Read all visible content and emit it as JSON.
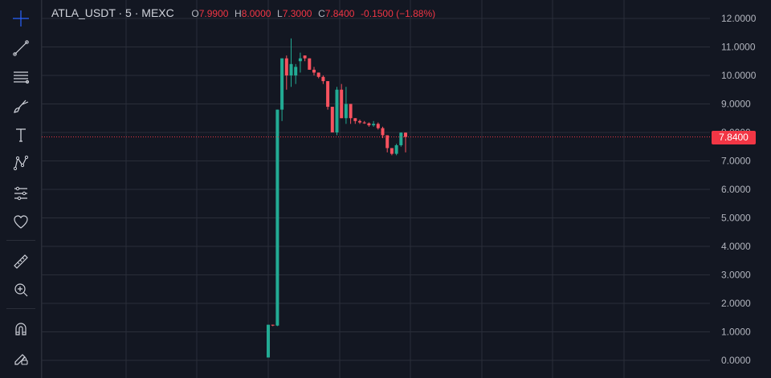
{
  "header": {
    "symbol": "ATLA_USDT · 5 · MEXC",
    "open_label": "O",
    "open_value": "7.9900",
    "high_label": "H",
    "high_value": "8.0000",
    "low_label": "L",
    "low_value": "7.3000",
    "close_label": "C",
    "close_value": "7.8400",
    "change_value": "-0.1500 (−1.88%)"
  },
  "price_tag": "7.8400",
  "colors": {
    "up": "#22ab94",
    "down": "#f7525f",
    "background": "#131722",
    "grid": "#2a2e39",
    "axis_text": "#b2b5be",
    "accent": "#2962ff"
  },
  "toolbar": [
    {
      "name": "crosshair-icon",
      "active": true
    },
    {
      "name": "trend-line-icon"
    },
    {
      "name": "fib-retracement-icon"
    },
    {
      "name": "brush-icon"
    },
    {
      "name": "text-icon"
    },
    {
      "name": "pattern-icon"
    },
    {
      "name": "prediction-icon"
    },
    {
      "name": "favorites-heart-icon"
    },
    {
      "name": "ruler-icon"
    },
    {
      "name": "zoom-in-icon"
    },
    {
      "name": "magnet-icon"
    },
    {
      "name": "lock-pencil-icon"
    }
  ],
  "chart_data": {
    "type": "candlestick",
    "y_ticks": [
      "12.0000",
      "11.0000",
      "10.0000",
      "9.0000",
      "8.0000",
      "7.0000",
      "6.0000",
      "5.0000",
      "4.0000",
      "3.0000",
      "2.0000",
      "1.0000",
      "0.0000"
    ],
    "ylim": [
      0,
      12
    ],
    "last_price": 7.84,
    "grid": true,
    "candles": [
      [
        0.1,
        1.25,
        0.1,
        1.25
      ],
      [
        1.25,
        1.25,
        1.2,
        1.22
      ],
      [
        1.22,
        8.8,
        1.2,
        8.8
      ],
      [
        8.8,
        10.6,
        8.4,
        10.6
      ],
      [
        10.6,
        10.7,
        9.5,
        10.0
      ],
      [
        10.0,
        11.3,
        9.6,
        10.4
      ],
      [
        10.0,
        10.4,
        9.7,
        10.3
      ],
      [
        10.5,
        10.8,
        10.1,
        10.6
      ],
      [
        10.7,
        10.7,
        10.5,
        10.6
      ],
      [
        10.6,
        10.6,
        10.2,
        10.2
      ],
      [
        10.2,
        10.3,
        10.0,
        10.1
      ],
      [
        10.1,
        10.1,
        9.9,
        9.95
      ],
      [
        9.95,
        10.0,
        9.7,
        9.8
      ],
      [
        9.8,
        9.8,
        8.8,
        8.9
      ],
      [
        8.9,
        8.9,
        8.0,
        8.0
      ],
      [
        8.0,
        9.6,
        7.9,
        9.5
      ],
      [
        9.5,
        9.7,
        8.5,
        8.5
      ],
      [
        8.5,
        9.6,
        8.3,
        9.0
      ],
      [
        9.0,
        9.0,
        8.3,
        8.5
      ],
      [
        8.5,
        8.5,
        8.3,
        8.4
      ],
      [
        8.4,
        8.45,
        8.3,
        8.35
      ],
      [
        8.35,
        8.4,
        8.3,
        8.32
      ],
      [
        8.32,
        8.35,
        8.2,
        8.25
      ],
      [
        8.25,
        8.4,
        8.2,
        8.3
      ],
      [
        8.3,
        8.35,
        8.1,
        8.15
      ],
      [
        8.15,
        8.2,
        7.8,
        7.9
      ],
      [
        7.9,
        7.9,
        7.3,
        7.45
      ],
      [
        7.45,
        7.45,
        7.2,
        7.25
      ],
      [
        7.25,
        7.6,
        7.2,
        7.55
      ],
      [
        7.55,
        8.0,
        7.5,
        7.99
      ],
      [
        7.99,
        8.0,
        7.3,
        7.84
      ]
    ]
  }
}
